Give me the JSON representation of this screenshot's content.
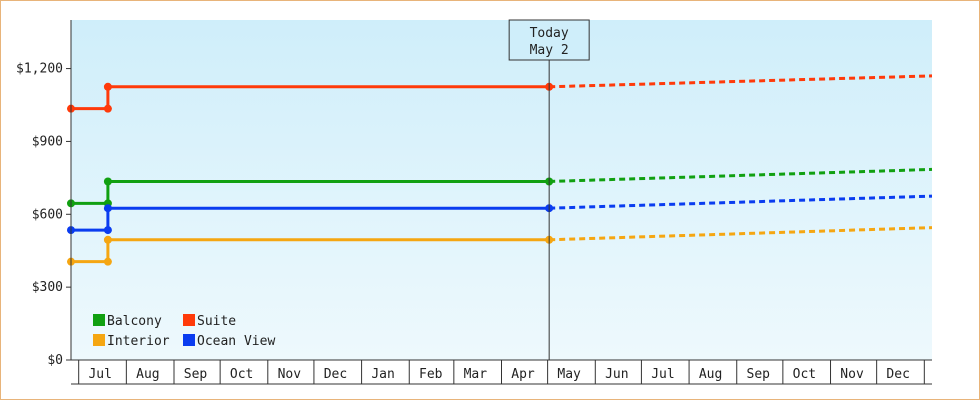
{
  "chart_data": {
    "type": "line",
    "title": "",
    "xlabel": "",
    "ylabel": "",
    "ylim": [
      0,
      1400
    ],
    "yticks": [
      {
        "value": 0,
        "label": "$0"
      },
      {
        "value": 300,
        "label": "$300"
      },
      {
        "value": 600,
        "label": "$600"
      },
      {
        "value": 900,
        "label": "$900"
      },
      {
        "value": 1200,
        "label": "$1,200"
      }
    ],
    "xlim": [
      "2023-06-26",
      "2025-01-06"
    ],
    "x_tick_labels": [
      {
        "date": "2023-07-15",
        "label": "Jul"
      },
      {
        "date": "2023-08-15",
        "label": "Aug"
      },
      {
        "date": "2023-09-15",
        "label": "Sep"
      },
      {
        "date": "2023-10-15",
        "label": "Oct"
      },
      {
        "date": "2023-11-15",
        "label": "Nov"
      },
      {
        "date": "2023-12-15",
        "label": "Dec"
      },
      {
        "date": "2024-01-15",
        "label": "Jan"
      },
      {
        "date": "2024-02-15",
        "label": "Feb"
      },
      {
        "date": "2024-03-15",
        "label": "Mar"
      },
      {
        "date": "2024-04-15",
        "label": "Apr"
      },
      {
        "date": "2024-05-15",
        "label": "May"
      },
      {
        "date": "2024-06-15",
        "label": "Jun"
      },
      {
        "date": "2024-07-15",
        "label": "Jul"
      },
      {
        "date": "2024-08-15",
        "label": "Aug"
      },
      {
        "date": "2024-09-15",
        "label": "Sep"
      },
      {
        "date": "2024-10-15",
        "label": "Oct"
      },
      {
        "date": "2024-11-15",
        "label": "Nov"
      },
      {
        "date": "2024-12-15",
        "label": "Dec"
      }
    ],
    "x_tick_boundaries": [
      "2023-07-01",
      "2023-08-01",
      "2023-09-01",
      "2023-10-01",
      "2023-11-01",
      "2023-12-01",
      "2024-01-01",
      "2024-02-01",
      "2024-03-01",
      "2024-04-01",
      "2024-05-01",
      "2024-06-01",
      "2024-07-01",
      "2024-08-01",
      "2024-09-01",
      "2024-10-01",
      "2024-11-01",
      "2024-12-01",
      "2025-01-01"
    ],
    "today": {
      "date": "2024-05-02",
      "label_line1": "Today",
      "label_line2": "May 2"
    },
    "background_gradient": [
      "#cfeefa",
      "#eef9fd"
    ],
    "grid": false,
    "legend": {
      "placement": "bottom-left",
      "entries": [
        "Balcony",
        "Suite",
        "Interior",
        "Ocean View"
      ]
    },
    "series": [
      {
        "name": "Suite",
        "color": "#ff3a0a",
        "history": [
          {
            "x": "2023-06-26",
            "y": 1035
          },
          {
            "x": "2023-07-20",
            "y": 1035
          },
          {
            "x": "2023-07-20",
            "y": 1125
          },
          {
            "x": "2024-05-02",
            "y": 1125
          }
        ],
        "forecast": [
          {
            "x": "2024-05-02",
            "y": 1125
          },
          {
            "x": "2025-01-06",
            "y": 1170
          }
        ]
      },
      {
        "name": "Balcony",
        "color": "#11a011",
        "history": [
          {
            "x": "2023-06-26",
            "y": 645
          },
          {
            "x": "2023-07-20",
            "y": 645
          },
          {
            "x": "2023-07-20",
            "y": 735
          },
          {
            "x": "2024-05-02",
            "y": 735
          }
        ],
        "forecast": [
          {
            "x": "2024-05-02",
            "y": 735
          },
          {
            "x": "2025-01-06",
            "y": 785
          }
        ]
      },
      {
        "name": "Ocean View",
        "color": "#0a3cf0",
        "history": [
          {
            "x": "2023-06-26",
            "y": 535
          },
          {
            "x": "2023-07-20",
            "y": 535
          },
          {
            "x": "2023-07-20",
            "y": 625
          },
          {
            "x": "2024-05-02",
            "y": 625
          }
        ],
        "forecast": [
          {
            "x": "2024-05-02",
            "y": 625
          },
          {
            "x": "2025-01-06",
            "y": 675
          }
        ]
      },
      {
        "name": "Interior",
        "color": "#f5a612",
        "history": [
          {
            "x": "2023-06-26",
            "y": 405
          },
          {
            "x": "2023-07-20",
            "y": 405
          },
          {
            "x": "2023-07-20",
            "y": 495
          },
          {
            "x": "2024-05-02",
            "y": 495
          }
        ],
        "forecast": [
          {
            "x": "2024-05-02",
            "y": 495
          },
          {
            "x": "2025-01-06",
            "y": 545
          }
        ]
      }
    ]
  }
}
